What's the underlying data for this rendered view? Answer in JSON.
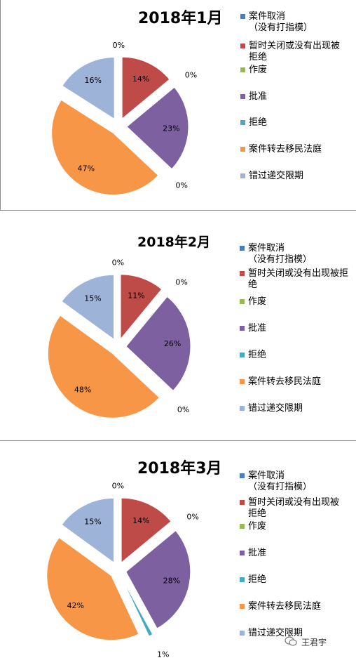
{
  "chart_data": [
    {
      "type": "pie",
      "title": "2018年1月",
      "categories": [
        "案件取消\n（没有打指模）",
        "暂时关闭或没有出现被拒绝",
        "作废",
        "批准",
        "拒绝",
        "案件转去移民法庭",
        "错过递交限期"
      ],
      "legend_labels": [
        "案件取消\n（没有打指模）",
        "暂时关闭或没有出现被\n拒绝",
        "作废",
        "批准",
        "拒绝",
        "案件转去移民法庭",
        "错过递交限期"
      ],
      "values": [
        0,
        14,
        0,
        23,
        0,
        47,
        16
      ],
      "data_labels": [
        "0%",
        "14%",
        "0%",
        "23%",
        "0%",
        "47%",
        "16%"
      ],
      "exploded": true,
      "legend_position": "right"
    },
    {
      "type": "pie",
      "title": "2018年2月",
      "categories": [
        "案件取消\n（没有打指模）",
        "暂时关闭或没有出现被拒绝",
        "作废",
        "批准",
        "拒绝",
        "案件转去移民法庭",
        "错过递交限期"
      ],
      "legend_labels": [
        "案件取消\n（没有打指模）",
        "暂时关闭或没有出现被拒绝",
        "作废",
        "批准",
        "拒绝",
        "案件转去移民法庭",
        "错过递交限期"
      ],
      "values": [
        0,
        11,
        0,
        26,
        0,
        48,
        15
      ],
      "data_labels": [
        "0%",
        "11%",
        "0%",
        "26%",
        "0%",
        "48%",
        "15%"
      ],
      "exploded": true,
      "legend_position": "right"
    },
    {
      "type": "pie",
      "title": "2018年3月",
      "categories": [
        "案件取消\n（没有打指模）",
        "暂时关闭或没有出现被拒绝",
        "作废",
        "批准",
        "拒绝",
        "案件转去移民法庭",
        "错过递交限期"
      ],
      "legend_labels": [
        "案件取消\n（没有打指模）",
        "暂时关闭或没有出现被\n拒绝",
        "作废",
        "批准",
        "拒绝",
        "案件转去移民法庭",
        "错过递交限期"
      ],
      "values": [
        0,
        14,
        0,
        28,
        1,
        42,
        15
      ],
      "data_labels": [
        "0%",
        "14%",
        "0%",
        "28%",
        "1%",
        "42%",
        "15%"
      ],
      "exploded": true,
      "legend_position": "right"
    }
  ],
  "colors": [
    "#4a7ebb",
    "#be4b48",
    "#98b954",
    "#7d60a0",
    "#46aac5",
    "#f79646",
    "#9eb3d8"
  ],
  "watermark": {
    "text": "王君宇",
    "icon": "wechat-icon"
  }
}
